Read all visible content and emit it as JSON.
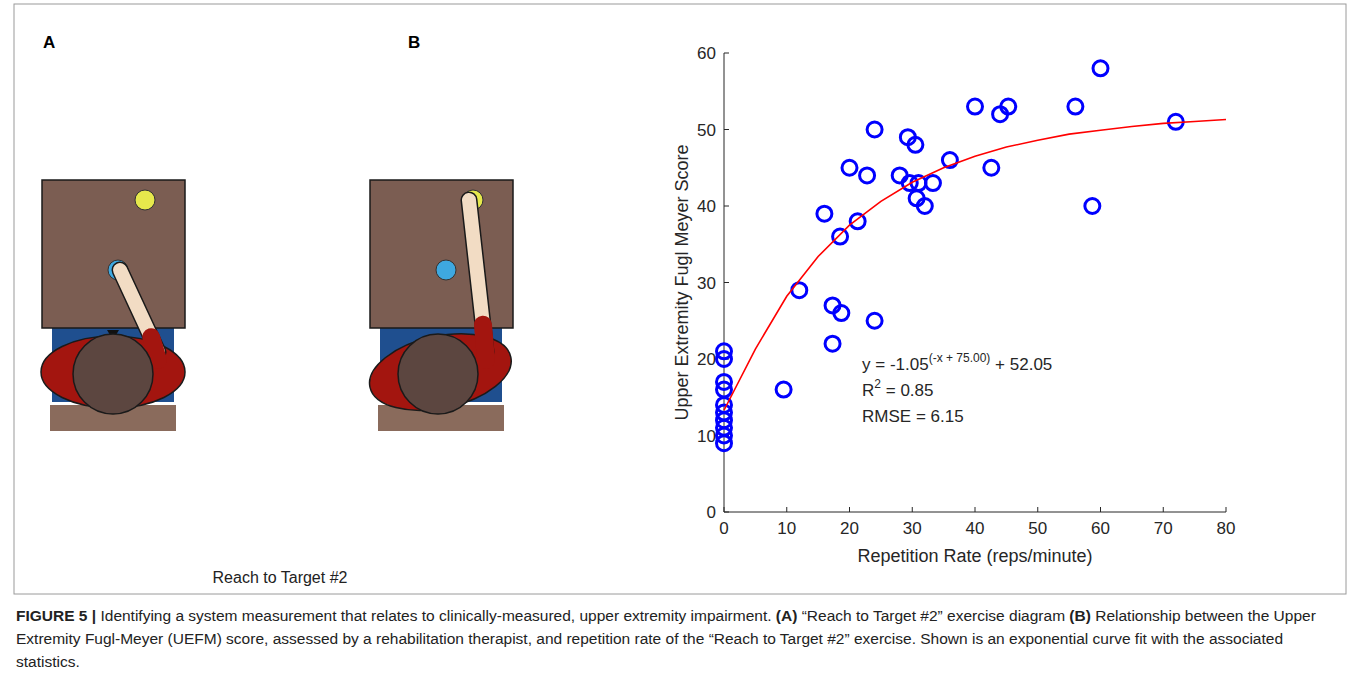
{
  "panels": {
    "a": {
      "letter": "A",
      "label": "Reach to Target #2"
    },
    "b": {
      "letter": "B"
    }
  },
  "chart_data": {
    "type": "scatter",
    "x_label": "Repetition Rate (reps/minute)",
    "y_label": "Upper Extremity Fugl Meyer Score",
    "xlim": [
      0,
      80
    ],
    "ylim": [
      0,
      60
    ],
    "xticks": [
      0,
      10,
      20,
      30,
      40,
      50,
      60,
      70,
      80
    ],
    "yticks": [
      0,
      10,
      20,
      30,
      40,
      50,
      60
    ],
    "grid": false,
    "annotations": [
      {
        "text": "y = -1.05",
        "superscript": "(-x + 75.00)",
        "suffix": " + 52.05"
      },
      {
        "text": "R",
        "superscript": "2",
        "suffix": " = 0.85"
      },
      {
        "text": "RMSE = 6.15"
      }
    ],
    "series": [
      {
        "type": "scatter",
        "color": "#0000ff",
        "marker": "circle",
        "x": [
          0,
          0,
          0,
          0,
          0,
          0,
          0,
          0,
          0,
          0,
          9.5,
          12,
          16,
          17.3,
          17.3,
          18.5,
          18.7,
          20,
          21.3,
          22.8,
          24,
          24,
          28,
          29.3,
          29.6,
          30.5,
          30.7,
          31,
          32,
          33.3,
          36,
          40,
          42.6,
          44,
          45.3,
          56,
          58.7,
          60,
          72
        ],
        "values": [
          21,
          20,
          17,
          16,
          14,
          13,
          12,
          11,
          10,
          9,
          16,
          29,
          39,
          27,
          22,
          36,
          26,
          45,
          38,
          44,
          50,
          25,
          44,
          49,
          43,
          48,
          41,
          43,
          40,
          43,
          46,
          53,
          45,
          52,
          53,
          53,
          40,
          58,
          51
        ]
      },
      {
        "type": "line",
        "color": "#ff0000",
        "line_style": "solid",
        "x": [
          0,
          5,
          10,
          15,
          20,
          25,
          30,
          35,
          40,
          45,
          50,
          55,
          60,
          65,
          70,
          75,
          80
        ],
        "values": [
          13.3,
          21.3,
          28.2,
          33.4,
          37.5,
          40.6,
          43.1,
          45.0,
          46.5,
          47.7,
          48.6,
          49.4,
          49.9,
          50.4,
          50.8,
          51.05,
          51.3
        ]
      }
    ]
  },
  "caption": {
    "figure_label": "FIGURE 5 |",
    "text": "Identifying a system measurement that relates to clinically-measured, upper extremity impairment.",
    "items": [
      {
        "letter": "(A)",
        "text": "“Reach to Target #2” exercise diagram"
      },
      {
        "letter": "(B)",
        "text": "Relationship between the Upper Extremity Fugl-Meyer (UEFM) score, assessed by a rehabilitation therapist, and repetition rate of the “Reach to Target #2” exercise. Shown is an exponential curve fit with the associated statistics."
      }
    ]
  }
}
